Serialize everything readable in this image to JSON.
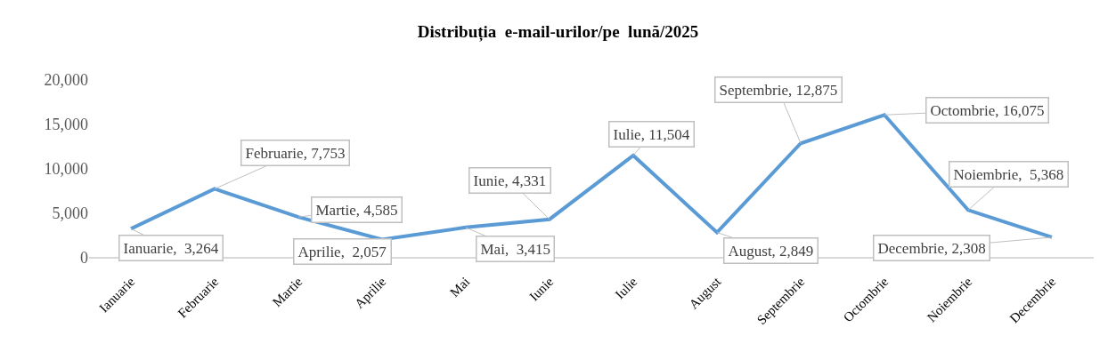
{
  "chart_data": {
    "type": "line",
    "title": "Distribuția  e-mail-urilor/pe  lună/2025",
    "categories": [
      "Ianuarie",
      "Februarie",
      "Martie",
      "Aprilie",
      "Mai",
      "Iunie",
      "Iulie",
      "August",
      "Septembrie",
      "Octombrie",
      "Noiembrie",
      "Decembrie"
    ],
    "series": [
      {
        "color": "#5b9bd5",
        "values": [
          3264,
          7753,
          4585,
          2057,
          3415,
          4331,
          11504,
          2849,
          12875,
          16075,
          5368,
          2308
        ],
        "value_labels": [
          "Ianuarie,  3,264",
          "Februarie, 7,753",
          "Martie, 4,585",
          "Aprilie,  2,057",
          "Mai,  3,415",
          "Iunie, 4,331",
          "Iulie, 11,504",
          "August, 2,849",
          "Septembrie, 12,875",
          "Octombrie, 16,075",
          "Noiembrie,  5,368",
          "Decembrie, 2,308"
        ]
      }
    ],
    "ylim": [
      0,
      20000
    ],
    "yticks": [
      {
        "value": 0,
        "label": "0"
      },
      {
        "value": 5000,
        "label": "5,000"
      },
      {
        "value": 10000,
        "label": "10,000"
      },
      {
        "value": 15000,
        "label": "15,000"
      },
      {
        "value": 20000,
        "label": "20,000"
      }
    ],
    "grid": false,
    "marker": "none",
    "line_style": "solid"
  }
}
